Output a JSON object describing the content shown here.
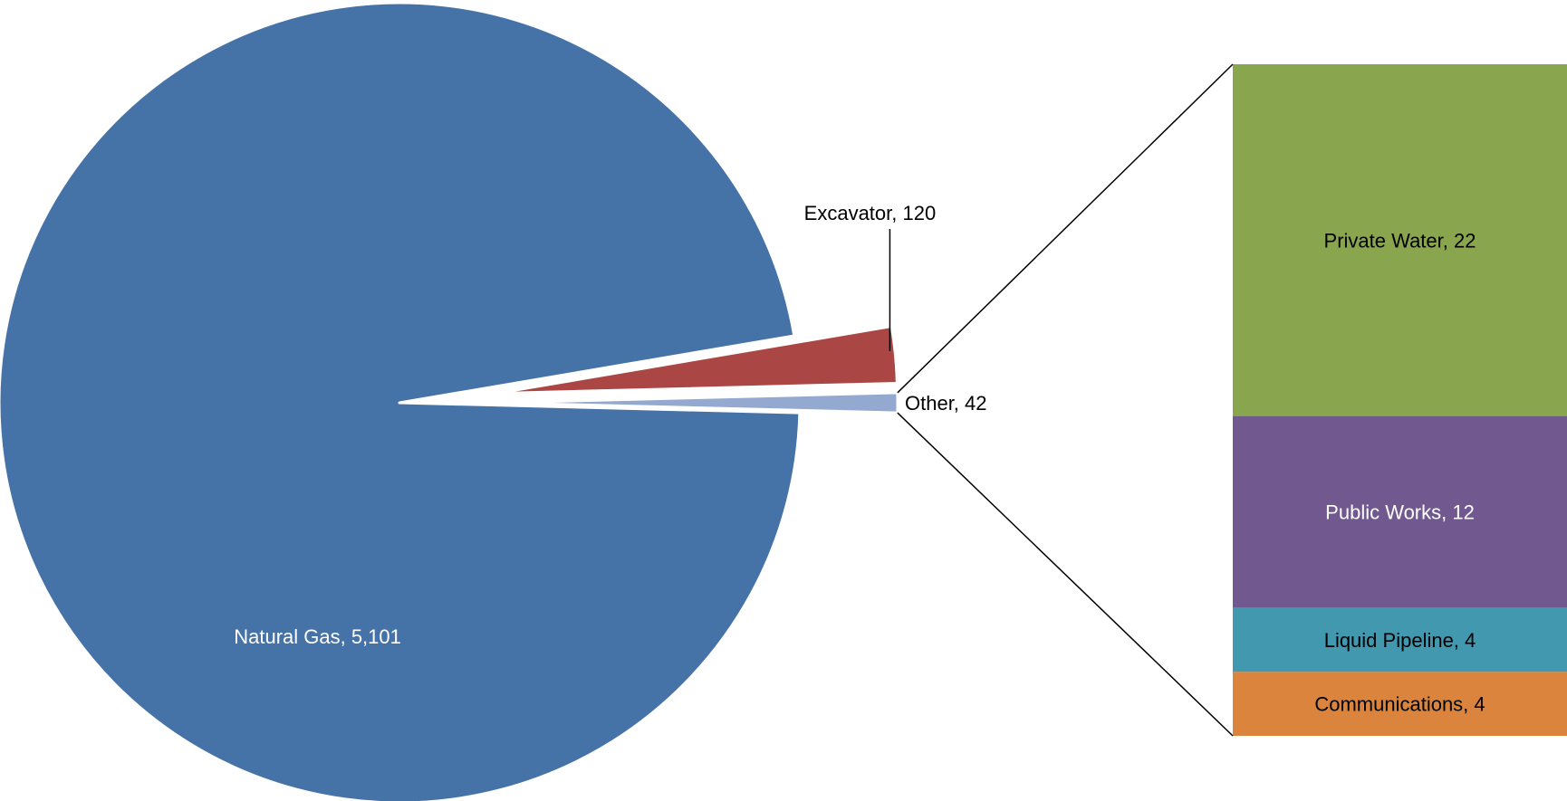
{
  "chart_data": {
    "type": "pie",
    "subtype": "bar-of-pie",
    "title": "",
    "slices": [
      {
        "label": "Natural Gas",
        "value": 5101,
        "display": "Natural Gas, 5,101",
        "color": "#4572A7",
        "label_color": "#ffffff"
      },
      {
        "label": "Excavator",
        "value": 120,
        "display": "Excavator, 120",
        "color": "#AA4643",
        "label_color": "#000000"
      },
      {
        "label": "Other",
        "value": 42,
        "display": "Other, 42",
        "color": "#93A9CF",
        "label_color": "#000000"
      }
    ],
    "breakdown_of": "Other",
    "breakdown": [
      {
        "label": "Private Water",
        "value": 22,
        "display": "Private Water, 22",
        "color": "#89A54E",
        "label_color": "#000000"
      },
      {
        "label": "Public Works",
        "value": 12,
        "display": "Public Works, 12",
        "color": "#71588F",
        "label_color": "#ffffff"
      },
      {
        "label": "Liquid Pipeline",
        "value": 4,
        "display": "Liquid Pipeline, 4",
        "color": "#4198AF",
        "label_color": "#000000"
      },
      {
        "label": "Communications",
        "value": 4,
        "display": "Communications, 4",
        "color": "#DB843D",
        "label_color": "#000000"
      }
    ]
  }
}
